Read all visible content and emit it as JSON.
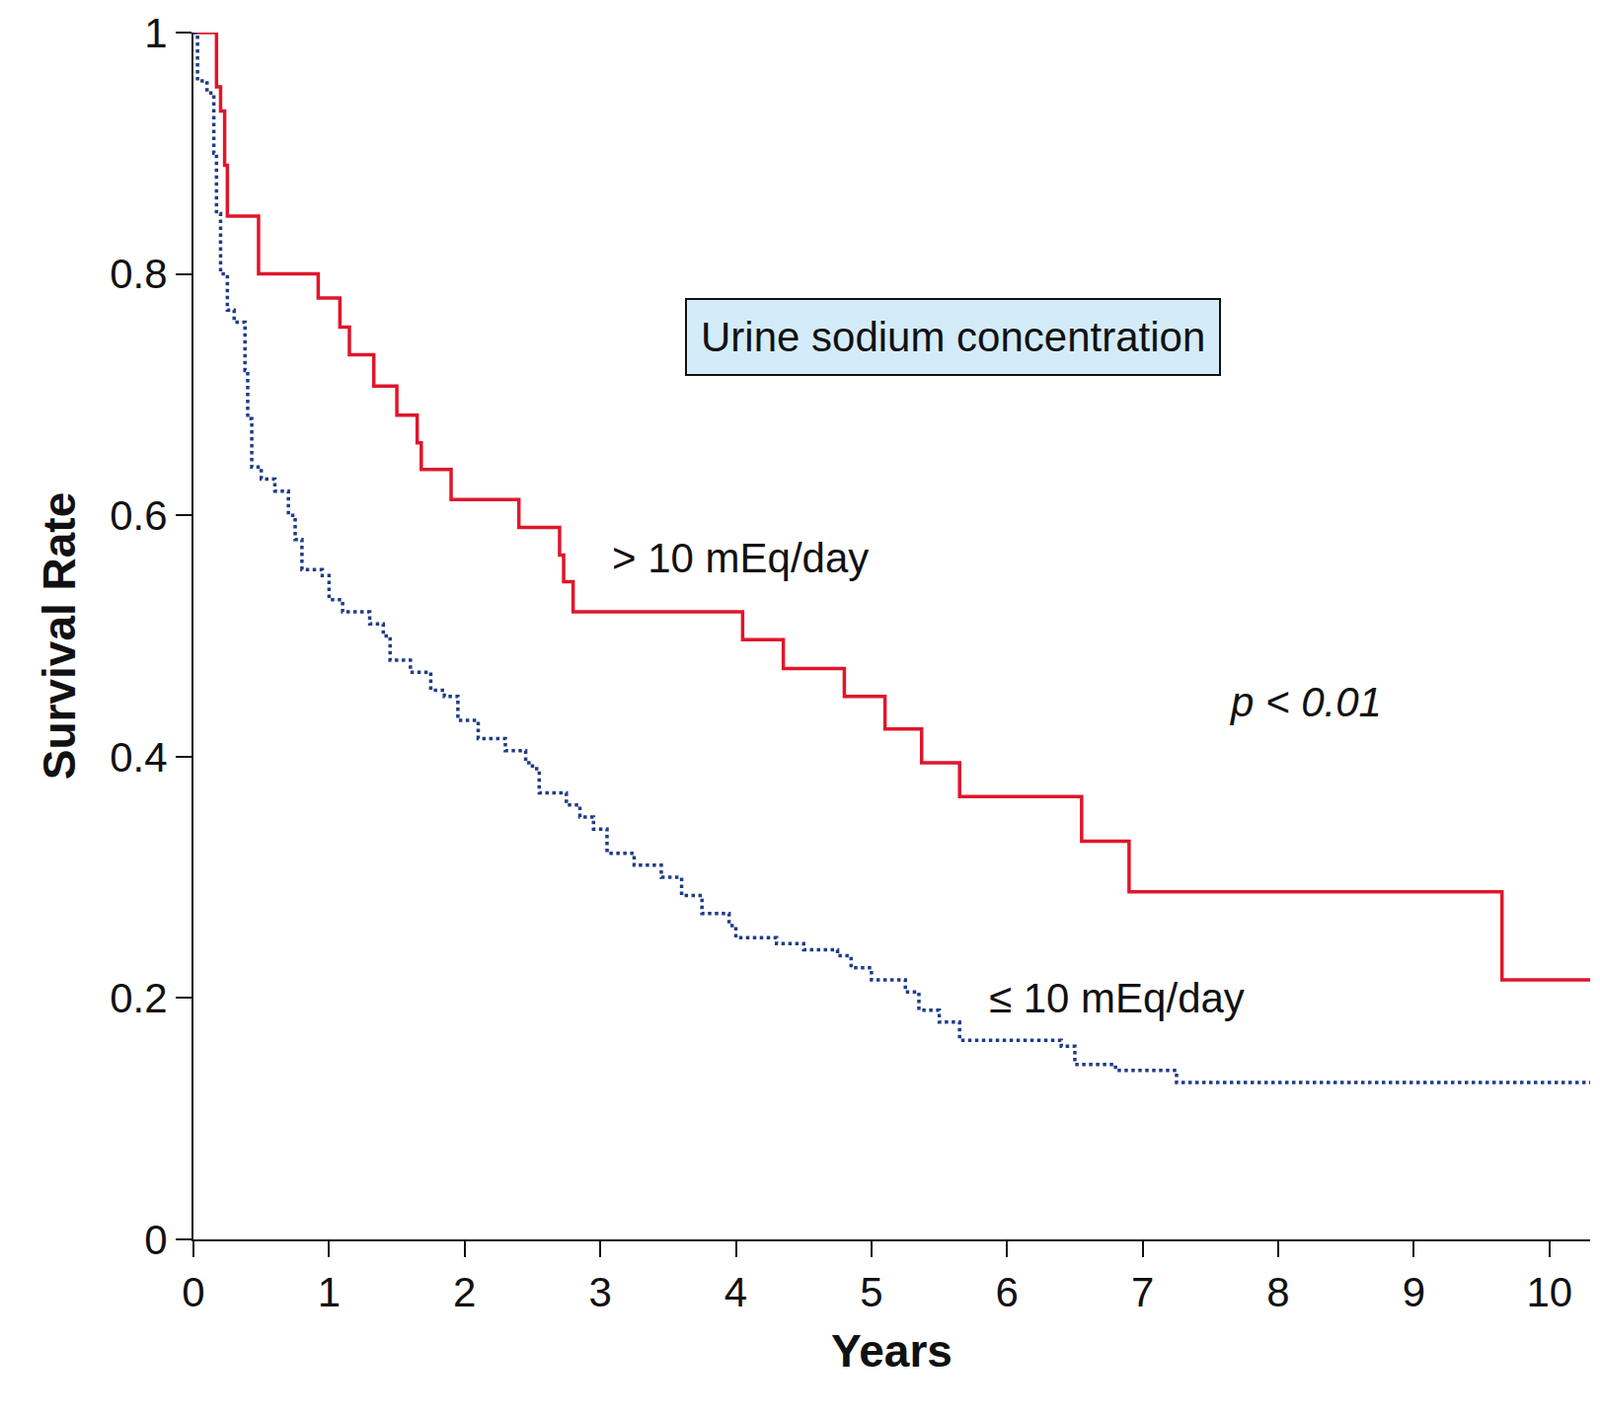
{
  "chart_data": {
    "type": "line",
    "xlabel": "Years",
    "ylabel": "Survival Rate",
    "annotations": [
      "Urine sodium concentration",
      "p < 0.01"
    ],
    "xlim": [
      0,
      10.3
    ],
    "xticks": [
      0,
      1,
      2,
      3,
      4,
      5,
      6,
      7,
      8,
      9,
      10
    ],
    "ylim": [
      0,
      1
    ],
    "yticks": [
      0,
      0.2,
      0.4,
      0.6,
      0.8,
      1
    ],
    "grid": false,
    "series": [
      {
        "name": "> 10 mEq/day",
        "color": "#e0162b",
        "line_style": "solid",
        "x": [
          0,
          0.17,
          0.2,
          0.23,
          0.25,
          0.48,
          0.92,
          1.08,
          1.15,
          1.33,
          1.5,
          1.65,
          1.68,
          1.9,
          2.4,
          2.7,
          2.73,
          2.8,
          4.05,
          4.35,
          4.8,
          5.1,
          5.37,
          5.65,
          6.55,
          6.9,
          9.65,
          10.3
        ],
        "values": [
          1,
          0.955,
          0.935,
          0.89,
          0.848,
          0.8,
          0.78,
          0.756,
          0.733,
          0.707,
          0.683,
          0.66,
          0.638,
          0.613,
          0.59,
          0.567,
          0.545,
          0.52,
          0.497,
          0.473,
          0.45,
          0.423,
          0.395,
          0.367,
          0.33,
          0.288,
          0.215,
          0.215
        ]
      },
      {
        "name": "≤ 10 mEq/day",
        "color": "#1f3c88",
        "line_style": "dotted",
        "x": [
          0,
          0.03,
          0.1,
          0.15,
          0.17,
          0.2,
          0.25,
          0.3,
          0.38,
          0.4,
          0.43,
          0.5,
          0.6,
          0.7,
          0.75,
          0.8,
          0.95,
          1.0,
          1.1,
          1.3,
          1.4,
          1.45,
          1.6,
          1.75,
          1.85,
          1.95,
          2.1,
          2.3,
          2.45,
          2.5,
          2.55,
          2.75,
          2.85,
          2.95,
          3.05,
          3.25,
          3.45,
          3.6,
          3.75,
          3.95,
          4.0,
          4.3,
          4.5,
          4.75,
          4.85,
          5.0,
          5.25,
          5.35,
          5.5,
          5.65,
          6.4,
          6.5,
          6.8,
          7.25,
          10.3
        ],
        "values": [
          1,
          0.96,
          0.95,
          0.9,
          0.85,
          0.8,
          0.77,
          0.76,
          0.72,
          0.68,
          0.64,
          0.63,
          0.62,
          0.6,
          0.58,
          0.555,
          0.55,
          0.53,
          0.52,
          0.51,
          0.5,
          0.48,
          0.47,
          0.455,
          0.45,
          0.43,
          0.415,
          0.405,
          0.395,
          0.39,
          0.37,
          0.36,
          0.35,
          0.34,
          0.32,
          0.31,
          0.3,
          0.285,
          0.27,
          0.26,
          0.25,
          0.245,
          0.24,
          0.235,
          0.225,
          0.215,
          0.205,
          0.19,
          0.18,
          0.165,
          0.16,
          0.145,
          0.14,
          0.13,
          0.13
        ]
      }
    ]
  }
}
